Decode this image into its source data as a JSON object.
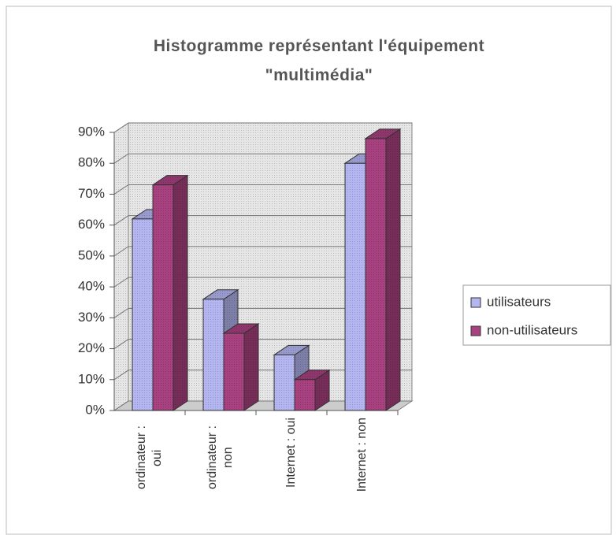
{
  "chart_data": {
    "type": "bar3d",
    "title": "Histogramme représentant l'équipement \"multimédia\"",
    "categories": [
      "ordinateur : oui",
      "ordinateur : non",
      "Internet : oui",
      "Internet : non"
    ],
    "series": [
      {
        "name": "utilisateurs",
        "color": "#b4b6f2",
        "values": [
          62,
          36,
          18,
          80
        ]
      },
      {
        "name": "non-utilisateurs",
        "color": "#a8417f",
        "values": [
          73,
          25,
          10,
          88
        ]
      }
    ],
    "ylim": [
      0,
      90
    ],
    "yticks": [
      {
        "value": 0,
        "label": "0%"
      },
      {
        "value": 10,
        "label": "10%"
      },
      {
        "value": 20,
        "label": "20%"
      },
      {
        "value": 30,
        "label": "30%"
      },
      {
        "value": 40,
        "label": "40%"
      },
      {
        "value": 50,
        "label": "50%"
      },
      {
        "value": 60,
        "label": "60%"
      },
      {
        "value": 70,
        "label": "70%"
      },
      {
        "value": 80,
        "label": "80%"
      },
      {
        "value": 90,
        "label": "90%"
      }
    ],
    "grid": true,
    "legend": "right"
  }
}
